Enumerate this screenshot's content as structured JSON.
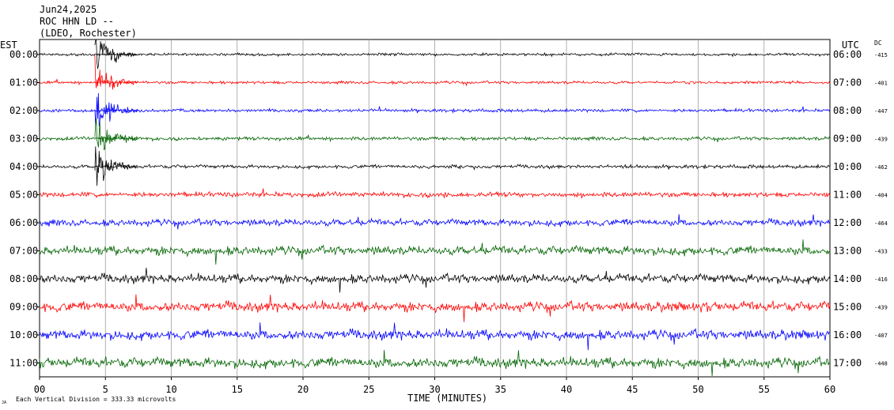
{
  "header": {
    "date": "Jun24,2025",
    "station": "ROC HHN LD --",
    "network": "(LDEO, Rochester)"
  },
  "labels": {
    "left_tz": "EST",
    "right_tz": "UTC",
    "dc": "DC",
    "x_axis": "TIME (MINUTES)",
    "footer": "Each Vertical Division =  333.33 microvolts",
    "corner_mark": "JA"
  },
  "colors": {
    "black": "#000000",
    "red": "#ff0000",
    "blue": "#0000ff",
    "green": "#006400",
    "grid": "#9e9e9e"
  },
  "chart_data": {
    "type": "line",
    "title": "ROC HHN LD --",
    "xlabel": "TIME (MINUTES)",
    "ylabel": "",
    "xlim": [
      0,
      60
    ],
    "x_ticks": [
      "00",
      "5",
      "10",
      "15",
      "20",
      "25",
      "30",
      "35",
      "40",
      "45",
      "50",
      "55",
      "60"
    ],
    "rows": [
      {
        "est": "00:00",
        "utc": "06:00",
        "dc": "-415",
        "color": "black",
        "amp": 0.3
      },
      {
        "est": "01:00",
        "utc": "07:00",
        "dc": "-401",
        "color": "red",
        "amp": 0.32
      },
      {
        "est": "02:00",
        "utc": "08:00",
        "dc": "-447",
        "color": "blue",
        "amp": 0.36
      },
      {
        "est": "03:00",
        "utc": "09:00",
        "dc": "-439",
        "color": "green",
        "amp": 0.4
      },
      {
        "est": "04:00",
        "utc": "10:00",
        "dc": "-462",
        "color": "black",
        "amp": 0.4
      },
      {
        "est": "05:00",
        "utc": "11:00",
        "dc": "-404",
        "color": "red",
        "amp": 0.55
      },
      {
        "est": "06:00",
        "utc": "12:00",
        "dc": "-464",
        "color": "blue",
        "amp": 0.75
      },
      {
        "est": "07:00",
        "utc": "13:00",
        "dc": "-433",
        "color": "green",
        "amp": 1.0
      },
      {
        "est": "08:00",
        "utc": "14:00",
        "dc": "-416",
        "color": "black",
        "amp": 1.0
      },
      {
        "est": "09:00",
        "utc": "15:00",
        "dc": "-439",
        "color": "red",
        "amp": 1.1
      },
      {
        "est": "10:00",
        "utc": "16:00",
        "dc": "-407",
        "color": "blue",
        "amp": 1.1
      },
      {
        "est": "11:00",
        "utc": "17:00",
        "dc": "-448",
        "color": "green",
        "amp": 1.15
      }
    ]
  }
}
